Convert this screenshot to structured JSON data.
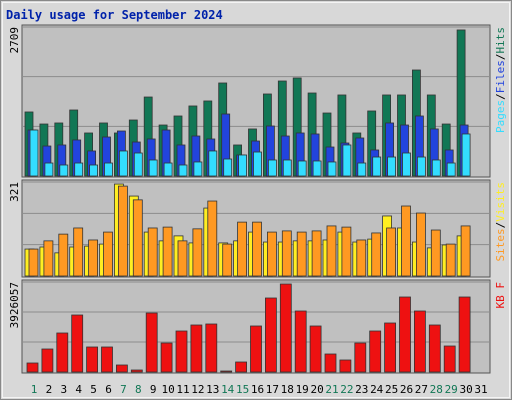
{
  "chart_data": {
    "type": "bar",
    "title": "Daily usage for September 2024",
    "categories": [
      "1",
      "2",
      "3",
      "4",
      "5",
      "6",
      "7",
      "8",
      "9",
      "10",
      "11",
      "12",
      "13",
      "14",
      "15",
      "16",
      "17",
      "18",
      "19",
      "20",
      "21",
      "22",
      "23",
      "24",
      "25",
      "26",
      "27",
      "28",
      "29",
      "30",
      "31"
    ],
    "category_colors": [
      "#117755",
      "#000000",
      "#000000",
      "#000000",
      "#000000",
      "#000000",
      "#117755",
      "#117755",
      "#000000",
      "#000000",
      "#000000",
      "#000000",
      "#000000",
      "#117755",
      "#117755",
      "#000000",
      "#000000",
      "#000000",
      "#000000",
      "#000000",
      "#117755",
      "#117755",
      "#000000",
      "#000000",
      "#000000",
      "#000000",
      "#000000",
      "#117755",
      "#117755",
      "#000000",
      "#000000"
    ],
    "legend_separator": "/",
    "panels": [
      {
        "ylim": [
          0,
          2709
        ],
        "yticks": [
          2709
        ],
        "series": [
          {
            "name": "Hits",
            "color": "#117755",
            "values": [
              1164,
              945,
              964,
              1200,
              782,
              964,
              782,
              1018,
              1436,
              927,
              1091,
              1273,
              1364,
              1691,
              564,
              855,
              1491,
              1727,
              1782,
              1509,
              1145,
              1473,
              782,
              1182,
              1473,
              1473,
              1927,
              1473,
              945,
              2655,
              null
            ]
          },
          {
            "name": "Files",
            "color": "#2244dd",
            "values": [
              836,
              545,
              564,
              655,
              455,
              709,
              818,
              618,
              673,
              836,
              564,
              727,
              673,
              1127,
              382,
              636,
              909,
              727,
              782,
              764,
              527,
              600,
              691,
              473,
              964,
              927,
              1091,
              855,
              473,
              927,
              null
            ]
          },
          {
            "name": "Pages",
            "color": "#33ddff",
            "values": [
              836,
              236,
              200,
              236,
              200,
              236,
              455,
              418,
              291,
              236,
              200,
              255,
              455,
              309,
              382,
              436,
              291,
              291,
              273,
              273,
              255,
              564,
              236,
              345,
              345,
              418,
              345,
              291,
              236,
              764,
              null
            ]
          }
        ]
      },
      {
        "ylim": [
          0,
          321
        ],
        "yticks": [
          321
        ],
        "series": [
          {
            "name": "Visits",
            "color": "#ffee22",
            "values": [
              92,
              99,
              79,
              99,
              102,
              109,
              314,
              273,
              150,
              120,
              137,
              113,
              232,
              113,
              120,
              150,
              116,
              116,
              120,
              120,
              123,
              150,
              116,
              126,
              205,
              164,
              116,
              96,
              106,
              137,
              null
            ]
          },
          {
            "name": "Sites",
            "color": "#ff9922",
            "values": [
              92,
              120,
              143,
              164,
              123,
              150,
              307,
              260,
              164,
              167,
              120,
              161,
              256,
              109,
              184,
              184,
              150,
              154,
              150,
              154,
              171,
              167,
              123,
              147,
              164,
              239,
              215,
              157,
              109,
              171,
              null
            ]
          }
        ]
      },
      {
        "ylim": [
          0,
          3926057
        ],
        "yticks": [
          3926057
        ],
        "series": [
          {
            "name": "KB F",
            "color": "#ee1111",
            "values": [
              392600,
              1003300,
              1701300,
              2486500,
              1090600,
              1090600,
              305400,
              87200,
              2573800,
              1265100,
              1788500,
              2050300,
              2093900,
              43600,
              436200,
              2006700,
              3228100,
              3838800,
              2661000,
              2006700,
              785200,
              523500,
              1265100,
              1788500,
              2137500,
              3271700,
              2661000,
              2050300,
              1134200,
              3271700,
              null
            ]
          }
        ]
      }
    ]
  }
}
